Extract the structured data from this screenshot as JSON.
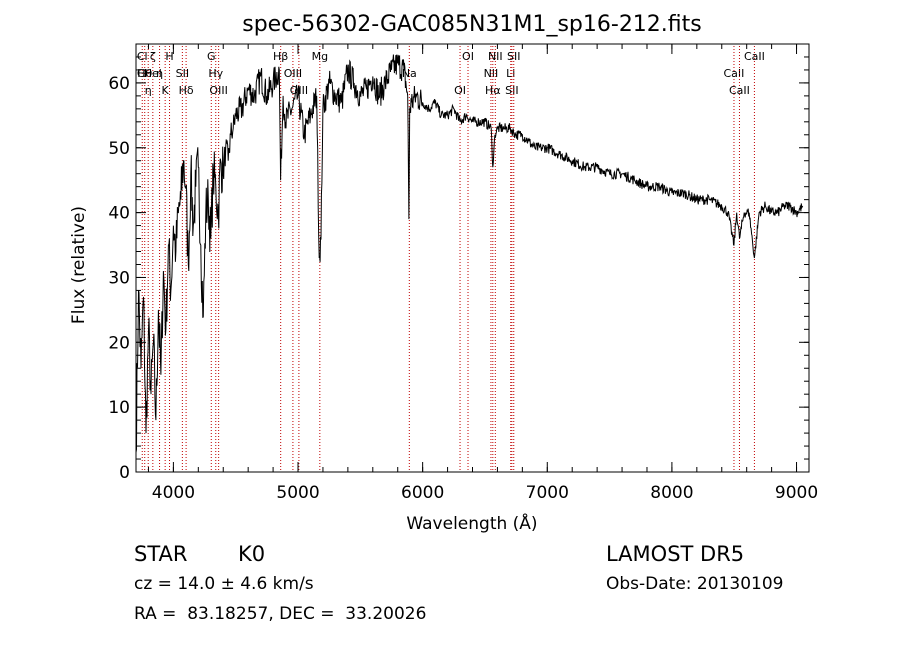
{
  "chart_data": {
    "type": "line",
    "title": "spec-56302-GAC085N31M1_sp16-212.fits",
    "xlabel": "Wavelength (Å)",
    "ylabel": "Flux (relative)",
    "xlim": [
      3700,
      9100
    ],
    "ylim": [
      0,
      66
    ],
    "xticks": [
      4000,
      5000,
      6000,
      7000,
      8000,
      9000
    ],
    "yticks": [
      0,
      10,
      20,
      30,
      40,
      50,
      60
    ],
    "x_minor_step": 200,
    "y_minor_step": 2,
    "grid": false,
    "line_color": "#000000",
    "marker_line_color": "#c00000",
    "series": [
      {
        "x": [
          3700,
          3720,
          3740,
          3760,
          3780,
          3800,
          3820,
          3840,
          3860,
          3880,
          3900,
          3920,
          3940,
          3960,
          3980,
          4000,
          4020,
          4040,
          4060,
          4080,
          4100,
          4120,
          4140,
          4160,
          4180,
          4200,
          4220,
          4240,
          4260,
          4280,
          4300,
          4320,
          4340,
          4360,
          4380,
          4400,
          4420,
          4440,
          4460,
          4480,
          4500,
          4550,
          4600,
          4650,
          4700,
          4750,
          4800,
          4850,
          4860,
          4880,
          4900,
          4950,
          5000,
          5050,
          5100,
          5150,
          5170,
          5184,
          5200,
          5250,
          5300,
          5350,
          5400,
          5450,
          5500,
          5550,
          5600,
          5650,
          5700,
          5750,
          5800,
          5850,
          5880,
          5890,
          5896,
          5910,
          5950,
          6000,
          6050,
          6100,
          6150,
          6200,
          6250,
          6300,
          6350,
          6400,
          6450,
          6500,
          6550,
          6563,
          6580,
          6600,
          6650,
          6700,
          6750,
          6800,
          6850,
          6900,
          6950,
          7000,
          7100,
          7200,
          7300,
          7400,
          7500,
          7600,
          7700,
          7800,
          7900,
          8000,
          8100,
          8200,
          8300,
          8400,
          8450,
          8498,
          8520,
          8542,
          8580,
          8620,
          8662,
          8700,
          8750,
          8800,
          8850,
          8900,
          8950,
          9000,
          9050
        ],
        "y": [
          3,
          28,
          16,
          27,
          6,
          22,
          12,
          20,
          8,
          25,
          15,
          31,
          22,
          35,
          28,
          38,
          34,
          40,
          42,
          48,
          44,
          32,
          46,
          38,
          44,
          47,
          35,
          24,
          40,
          42,
          36,
          46,
          44,
          40,
          48,
          46,
          50,
          48,
          52,
          53,
          55,
          56,
          59,
          58,
          61,
          58,
          60,
          62,
          45,
          58,
          54,
          56,
          58,
          52,
          55,
          58,
          33,
          36,
          56,
          60,
          58,
          57,
          62,
          60,
          58,
          59,
          61,
          58,
          60,
          62,
          63,
          62,
          58,
          39,
          56,
          57,
          58,
          57,
          56,
          57,
          55,
          55,
          56,
          54,
          55,
          54,
          54,
          54,
          53,
          47,
          52,
          53,
          53,
          53,
          52,
          52,
          51,
          50,
          50,
          50,
          49,
          48,
          47,
          47,
          46,
          46,
          45,
          44,
          44,
          43,
          43,
          42,
          42,
          41,
          40,
          35,
          40,
          36,
          40,
          40,
          33,
          40,
          41,
          40,
          40,
          41,
          41,
          40,
          41
        ]
      }
    ],
    "line_markers": [
      {
        "x": 3750,
        "labels": [
          "Cl",
          "Cl"
        ]
      },
      {
        "x": 3770,
        "labels": [
          "Hθ"
        ]
      },
      {
        "x": 3798,
        "labels": [
          "η"
        ]
      },
      {
        "x": 3835,
        "labels": [
          "ζ",
          "Hel"
        ]
      },
      {
        "x": 3889,
        "labels": [
          "η"
        ]
      },
      {
        "x": 3934,
        "labels": [
          "K"
        ]
      },
      {
        "x": 3969,
        "labels": [
          "H"
        ]
      },
      {
        "x": 4072,
        "labels": [
          "SII"
        ]
      },
      {
        "x": 4102,
        "labels": [
          "Hδ"
        ]
      },
      {
        "x": 4304,
        "labels": [
          "G"
        ]
      },
      {
        "x": 4340,
        "labels": [
          "Hγ"
        ]
      },
      {
        "x": 4363,
        "labels": [
          "OIII"
        ]
      },
      {
        "x": 4861,
        "labels": [
          "Hβ"
        ]
      },
      {
        "x": 4959,
        "labels": [
          "OIII"
        ]
      },
      {
        "x": 5007,
        "labels": [
          "OIII"
        ]
      },
      {
        "x": 5175,
        "labels": [
          "Mg"
        ]
      },
      {
        "x": 5893,
        "labels": [
          "Na"
        ]
      },
      {
        "x": 6300,
        "labels": [
          "OI"
        ]
      },
      {
        "x": 6364,
        "labels": [
          "OI"
        ]
      },
      {
        "x": 6548,
        "labels": [
          "NII"
        ]
      },
      {
        "x": 6563,
        "labels": [
          "Hα"
        ]
      },
      {
        "x": 6583,
        "labels": [
          "NII"
        ]
      },
      {
        "x": 6707,
        "labels": [
          "Li"
        ]
      },
      {
        "x": 6716,
        "labels": [
          "SII"
        ]
      },
      {
        "x": 6731,
        "labels": [
          "SII"
        ]
      },
      {
        "x": 8498,
        "labels": [
          "CaII"
        ]
      },
      {
        "x": 8542,
        "labels": [
          "CaII"
        ]
      },
      {
        "x": 8662,
        "labels": [
          "CaII"
        ]
      }
    ]
  },
  "info": {
    "class_label": "STAR",
    "subclass": "K0",
    "survey": "LAMOST DR5",
    "redshift": "cz = 14.0 ± 4.6 km/s",
    "obs_date": "Obs-Date: 20130109",
    "coords": "RA =  83.18257, DEC =  33.20026"
  }
}
